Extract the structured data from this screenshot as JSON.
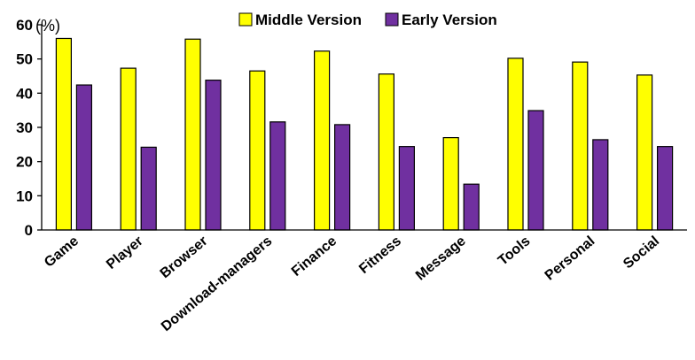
{
  "chart_data": {
    "type": "bar",
    "unit_label": "(%)",
    "categories": [
      "Game",
      "Player",
      "Browser",
      "Download-managers",
      "Finance",
      "Fitness",
      "Message",
      "Tools",
      "Personal",
      "Social"
    ],
    "series": [
      {
        "name": "Middle Version",
        "color": "#ffff00",
        "values": [
          56.0,
          47.3,
          55.8,
          46.5,
          52.3,
          45.6,
          27.0,
          50.2,
          49.1,
          45.3
        ]
      },
      {
        "name": "Early Version",
        "color": "#7030a0",
        "values": [
          42.4,
          24.2,
          43.8,
          31.6,
          30.8,
          24.4,
          13.4,
          34.9,
          26.4,
          24.4
        ]
      }
    ],
    "ylim": [
      0,
      60
    ],
    "yticks": [
      0,
      10,
      20,
      30,
      40,
      50,
      60
    ],
    "grid": false,
    "legend_position": "top"
  }
}
